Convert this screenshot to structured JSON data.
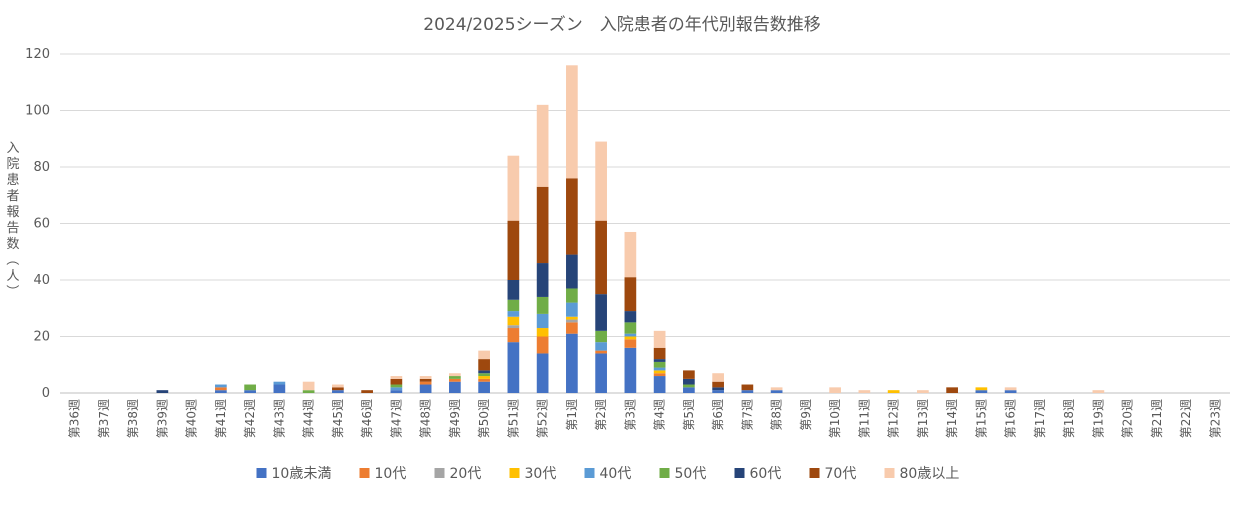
{
  "chart_data": {
    "type": "bar",
    "stacked": true,
    "title": "2024/2025シーズン　入院患者の年代別報告数推移",
    "ylabel": "入院患者報告数（人）",
    "xlabel": "",
    "ylim": [
      0,
      120
    ],
    "yticks": [
      0,
      20,
      40,
      60,
      80,
      100,
      120
    ],
    "grid": true,
    "legend_position": "bottom",
    "categories": [
      "第36週",
      "第37週",
      "第38週",
      "第39週",
      "第40週",
      "第41週",
      "第42週",
      "第43週",
      "第44週",
      "第45週",
      "第46週",
      "第47週",
      "第48週",
      "第49週",
      "第50週",
      "第51週",
      "第52週",
      "第1週",
      "第2週",
      "第3週",
      "第4週",
      "第5週",
      "第6週",
      "第7週",
      "第8週",
      "第9週",
      "第10週",
      "第11週",
      "第12週",
      "第13週",
      "第14週",
      "第15週",
      "第16週",
      "第17週",
      "第18週",
      "第19週",
      "第20週",
      "第21週",
      "第22週",
      "第23週"
    ],
    "series": [
      {
        "name": "10歳未満",
        "color": "#4472C4",
        "values": [
          0,
          0,
          0,
          0,
          0,
          1,
          1,
          3,
          0,
          1,
          0,
          1,
          3,
          4,
          4,
          18,
          14,
          21,
          14,
          16,
          6,
          2,
          1,
          1,
          1,
          0,
          0,
          0,
          0,
          0,
          0,
          1,
          1,
          0,
          0,
          0,
          0,
          0,
          0,
          0
        ]
      },
      {
        "name": "10代",
        "color": "#ED7D31",
        "values": [
          0,
          0,
          0,
          0,
          0,
          1,
          0,
          0,
          0,
          0,
          0,
          0,
          1,
          1,
          1,
          5,
          6,
          4,
          1,
          3,
          1,
          0,
          0,
          0,
          0,
          0,
          0,
          0,
          0,
          0,
          0,
          0,
          0,
          0,
          0,
          0,
          0,
          0,
          0,
          0
        ]
      },
      {
        "name": "20代",
        "color": "#A5A5A5",
        "values": [
          0,
          0,
          0,
          0,
          0,
          0,
          0,
          0,
          0,
          0,
          0,
          0,
          0,
          0,
          0,
          1,
          0,
          1,
          0,
          0,
          0,
          0,
          0,
          0,
          0,
          0,
          0,
          0,
          0,
          0,
          0,
          0,
          0,
          0,
          0,
          0,
          0,
          0,
          0,
          0
        ]
      },
      {
        "name": "30代",
        "color": "#FFC000",
        "values": [
          0,
          0,
          0,
          0,
          0,
          0,
          0,
          0,
          0,
          0,
          0,
          0,
          0,
          0,
          1,
          3,
          3,
          1,
          0,
          1,
          1,
          0,
          0,
          0,
          0,
          0,
          0,
          0,
          1,
          0,
          0,
          1,
          0,
          0,
          0,
          0,
          0,
          0,
          0,
          0
        ]
      },
      {
        "name": "40代",
        "color": "#5B9BD5",
        "values": [
          0,
          0,
          0,
          0,
          0,
          1,
          0,
          1,
          0,
          0,
          0,
          1,
          0,
          0,
          0,
          2,
          5,
          5,
          3,
          1,
          1,
          0,
          0,
          0,
          0,
          0,
          0,
          0,
          0,
          0,
          0,
          0,
          0,
          0,
          0,
          0,
          0,
          0,
          0,
          0
        ]
      },
      {
        "name": "50代",
        "color": "#70AD47",
        "values": [
          0,
          0,
          0,
          0,
          0,
          0,
          2,
          0,
          1,
          0,
          0,
          1,
          0,
          1,
          1,
          4,
          6,
          5,
          4,
          4,
          2,
          1,
          0,
          0,
          0,
          0,
          0,
          0,
          0,
          0,
          0,
          0,
          0,
          0,
          0,
          0,
          0,
          0,
          0,
          0
        ]
      },
      {
        "name": "60代",
        "color": "#264478",
        "values": [
          0,
          0,
          0,
          1,
          0,
          0,
          0,
          0,
          0,
          0,
          0,
          0,
          0,
          0,
          1,
          7,
          12,
          12,
          13,
          4,
          1,
          2,
          1,
          0,
          0,
          0,
          0,
          0,
          0,
          0,
          0,
          0,
          0,
          0,
          0,
          0,
          0,
          0,
          0,
          0
        ]
      },
      {
        "name": "70代",
        "color": "#9E480E",
        "values": [
          0,
          0,
          0,
          0,
          0,
          0,
          0,
          0,
          0,
          1,
          1,
          2,
          1,
          0,
          4,
          21,
          27,
          27,
          26,
          12,
          4,
          3,
          2,
          2,
          0,
          0,
          0,
          0,
          0,
          0,
          2,
          0,
          0,
          0,
          0,
          0,
          0,
          0,
          0,
          0
        ]
      },
      {
        "name": "80歳以上",
        "color": "#F8CBAD",
        "values": [
          0,
          0,
          0,
          0,
          0,
          0,
          0,
          0,
          3,
          1,
          0,
          1,
          1,
          1,
          3,
          23,
          29,
          40,
          28,
          16,
          6,
          0,
          3,
          0,
          1,
          0,
          2,
          1,
          0,
          1,
          0,
          0,
          1,
          0,
          0,
          1,
          0,
          0,
          0,
          0
        ]
      }
    ]
  }
}
